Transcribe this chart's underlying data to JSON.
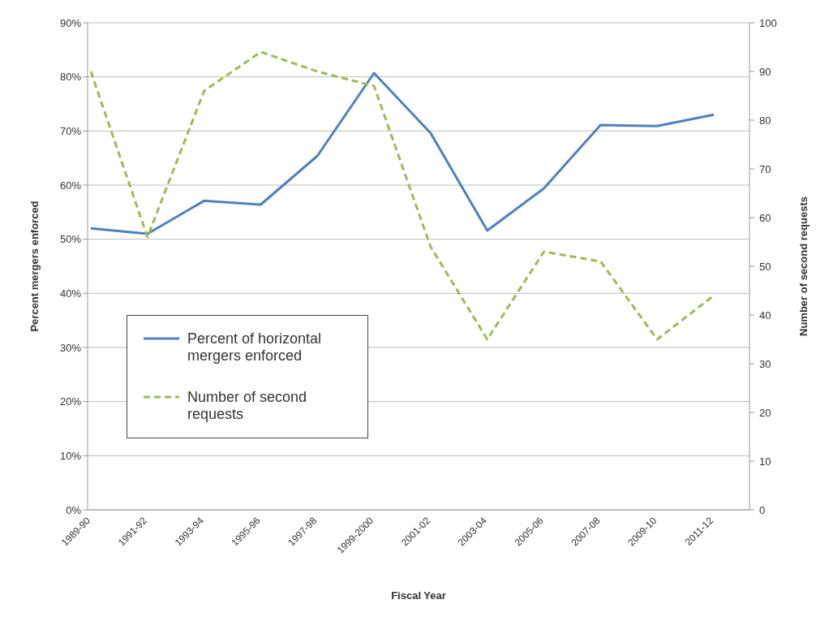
{
  "chart_data": {
    "type": "line",
    "xlabel": "Fiscal Year",
    "ylabel": "Percent mergers enforced",
    "y2label": "Number of second requests",
    "categories": [
      "1989-90",
      "1991-92",
      "1993-94",
      "1995-96",
      "1997-98",
      "1999-2000",
      "2001-02",
      "2003-04",
      "2005-06",
      "2007-08",
      "2009-10",
      "2011-12"
    ],
    "series": [
      {
        "name": "Percent of horizontal mergers enforced",
        "color": "#4f81bd",
        "line_style": "solid",
        "values": [
          52.0,
          51.0,
          57.1,
          56.4,
          65.4,
          80.7,
          69.6,
          51.6,
          59.4,
          71.1,
          70.9,
          73.0
        ]
      },
      {
        "name": "Number of second requests",
        "color": "#9bbb59",
        "line_style": "dashed",
        "axis": "y2",
        "values": [
          90,
          56,
          86,
          94,
          90,
          87,
          54,
          35,
          53,
          51,
          35,
          44
        ]
      }
    ],
    "ylim": [
      0,
      90
    ],
    "yticks": [
      {
        "value": 0,
        "label": "0%"
      },
      {
        "value": 10,
        "label": "10%"
      },
      {
        "value": 20,
        "label": "20%"
      },
      {
        "value": 30,
        "label": "30%"
      },
      {
        "value": 40,
        "label": "40%"
      },
      {
        "value": 50,
        "label": "50%"
      },
      {
        "value": 60,
        "label": "60%"
      },
      {
        "value": 70,
        "label": "70%"
      },
      {
        "value": 80,
        "label": "80%"
      },
      {
        "value": 90,
        "label": "90%"
      }
    ],
    "y2lim": [
      0,
      100
    ],
    "y2ticks": [
      0,
      10,
      20,
      30,
      40,
      50,
      60,
      70,
      80,
      90,
      100
    ],
    "grid": "y",
    "legend": "bottom left",
    "marker": "none"
  }
}
